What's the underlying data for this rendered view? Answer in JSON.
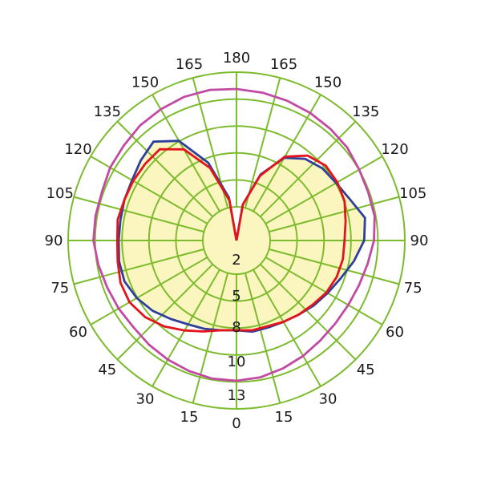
{
  "chart_data": {
    "type": "polar-line",
    "title": "",
    "angle_labels": [
      {
        "text": "180",
        "deg": 0
      },
      {
        "text": "165",
        "deg": 15
      },
      {
        "text": "150",
        "deg": 30
      },
      {
        "text": "135",
        "deg": 45
      },
      {
        "text": "120",
        "deg": 60
      },
      {
        "text": "105",
        "deg": 75
      },
      {
        "text": "90",
        "deg": 90
      },
      {
        "text": "75",
        "deg": 105
      },
      {
        "text": "60",
        "deg": 120
      },
      {
        "text": "45",
        "deg": 135
      },
      {
        "text": "30",
        "deg": 150
      },
      {
        "text": "15",
        "deg": 165
      },
      {
        "text": "0",
        "deg": 180
      },
      {
        "text": "15",
        "deg": 195
      },
      {
        "text": "30",
        "deg": 210
      },
      {
        "text": "45",
        "deg": 225
      },
      {
        "text": "60",
        "deg": 240
      },
      {
        "text": "75",
        "deg": 255
      },
      {
        "text": "90",
        "deg": 270
      },
      {
        "text": "105",
        "deg": 285
      },
      {
        "text": "120",
        "deg": 300
      },
      {
        "text": "135",
        "deg": 315
      },
      {
        "text": "150",
        "deg": 330
      },
      {
        "text": "165",
        "deg": 345
      }
    ],
    "radial_ticks": [
      "2",
      "5",
      "8",
      "10",
      "13"
    ],
    "rings": 6,
    "colors": {
      "grid": "#7dbb2e",
      "fill": "#fbf6bf",
      "blue": "#2e3f9c",
      "red": "#e3141b",
      "magenta": "#c14aa3"
    },
    "series": [
      {
        "color": "blue",
        "fill": true,
        "points": [
          [
            0,
            0
          ],
          [
            10,
            2.6
          ],
          [
            20,
            5.0
          ],
          [
            30,
            6.8
          ],
          [
            40,
            7.6
          ],
          [
            50,
            8.0
          ],
          [
            60,
            8.2
          ],
          [
            70,
            8.6
          ],
          [
            80,
            9.3
          ],
          [
            90,
            9.1
          ],
          [
            100,
            8.5
          ],
          [
            110,
            7.9
          ],
          [
            120,
            7.5
          ],
          [
            130,
            7.2
          ],
          [
            140,
            6.9
          ],
          [
            150,
            6.7
          ],
          [
            160,
            6.6
          ],
          [
            170,
            6.6
          ],
          [
            180,
            6.4
          ],
          [
            190,
            6.5
          ],
          [
            200,
            6.7
          ],
          [
            210,
            6.9
          ],
          [
            220,
            7.3
          ],
          [
            230,
            7.8
          ],
          [
            240,
            8.2
          ],
          [
            250,
            8.5
          ],
          [
            260,
            8.5
          ],
          [
            270,
            8.4
          ],
          [
            280,
            8.4
          ],
          [
            290,
            8.5
          ],
          [
            300,
            8.6
          ],
          [
            310,
            8.9
          ],
          [
            320,
            9.2
          ],
          [
            330,
            8.2
          ],
          [
            340,
            5.9
          ],
          [
            350,
            3.1
          ],
          [
            360,
            0
          ]
        ]
      },
      {
        "color": "red",
        "fill": false,
        "points": [
          [
            0,
            0
          ],
          [
            10,
            2.6
          ],
          [
            20,
            4.9
          ],
          [
            30,
            6.9
          ],
          [
            40,
            7.9
          ],
          [
            50,
            8.3
          ],
          [
            60,
            8.3
          ],
          [
            70,
            8.2
          ],
          [
            80,
            7.9
          ],
          [
            90,
            7.7
          ],
          [
            100,
            7.7
          ],
          [
            110,
            7.6
          ],
          [
            120,
            7.4
          ],
          [
            130,
            7.1
          ],
          [
            140,
            6.9
          ],
          [
            150,
            6.7
          ],
          [
            160,
            6.5
          ],
          [
            170,
            6.5
          ],
          [
            180,
            6.4
          ],
          [
            190,
            6.5
          ],
          [
            200,
            6.9
          ],
          [
            210,
            7.4
          ],
          [
            220,
            8.0
          ],
          [
            230,
            8.5
          ],
          [
            240,
            8.8
          ],
          [
            250,
            8.8
          ],
          [
            260,
            8.6
          ],
          [
            270,
            8.5
          ],
          [
            280,
            8.6
          ],
          [
            290,
            8.5
          ],
          [
            300,
            8.5
          ],
          [
            310,
            8.5
          ],
          [
            320,
            8.5
          ],
          [
            330,
            7.5
          ],
          [
            340,
            5.5
          ],
          [
            350,
            2.9
          ],
          [
            360,
            0
          ]
        ]
      },
      {
        "color": "magenta",
        "fill": false,
        "points": [
          [
            0,
            10.8
          ],
          [
            10,
            10.7
          ],
          [
            20,
            10.6
          ],
          [
            30,
            10.5
          ],
          [
            40,
            10.4
          ],
          [
            50,
            10.3
          ],
          [
            60,
            10.1
          ],
          [
            70,
            10.0
          ],
          [
            80,
            10.0
          ],
          [
            90,
            9.8
          ],
          [
            100,
            9.5
          ],
          [
            110,
            9.3
          ],
          [
            120,
            9.2
          ],
          [
            130,
            9.2
          ],
          [
            140,
            9.3
          ],
          [
            150,
            9.5
          ],
          [
            160,
            9.7
          ],
          [
            170,
            9.9
          ],
          [
            180,
            10.0
          ],
          [
            190,
            10.0
          ],
          [
            200,
            9.9
          ],
          [
            210,
            9.8
          ],
          [
            220,
            9.7
          ],
          [
            230,
            9.6
          ],
          [
            240,
            9.7
          ],
          [
            250,
            9.8
          ],
          [
            260,
            10.0
          ],
          [
            270,
            10.2
          ],
          [
            280,
            10.2
          ],
          [
            290,
            10.2
          ],
          [
            300,
            10.4
          ],
          [
            310,
            10.5
          ],
          [
            320,
            10.7
          ],
          [
            330,
            10.8
          ],
          [
            340,
            10.9
          ],
          [
            350,
            10.9
          ],
          [
            360,
            10.8
          ]
        ]
      }
    ]
  }
}
